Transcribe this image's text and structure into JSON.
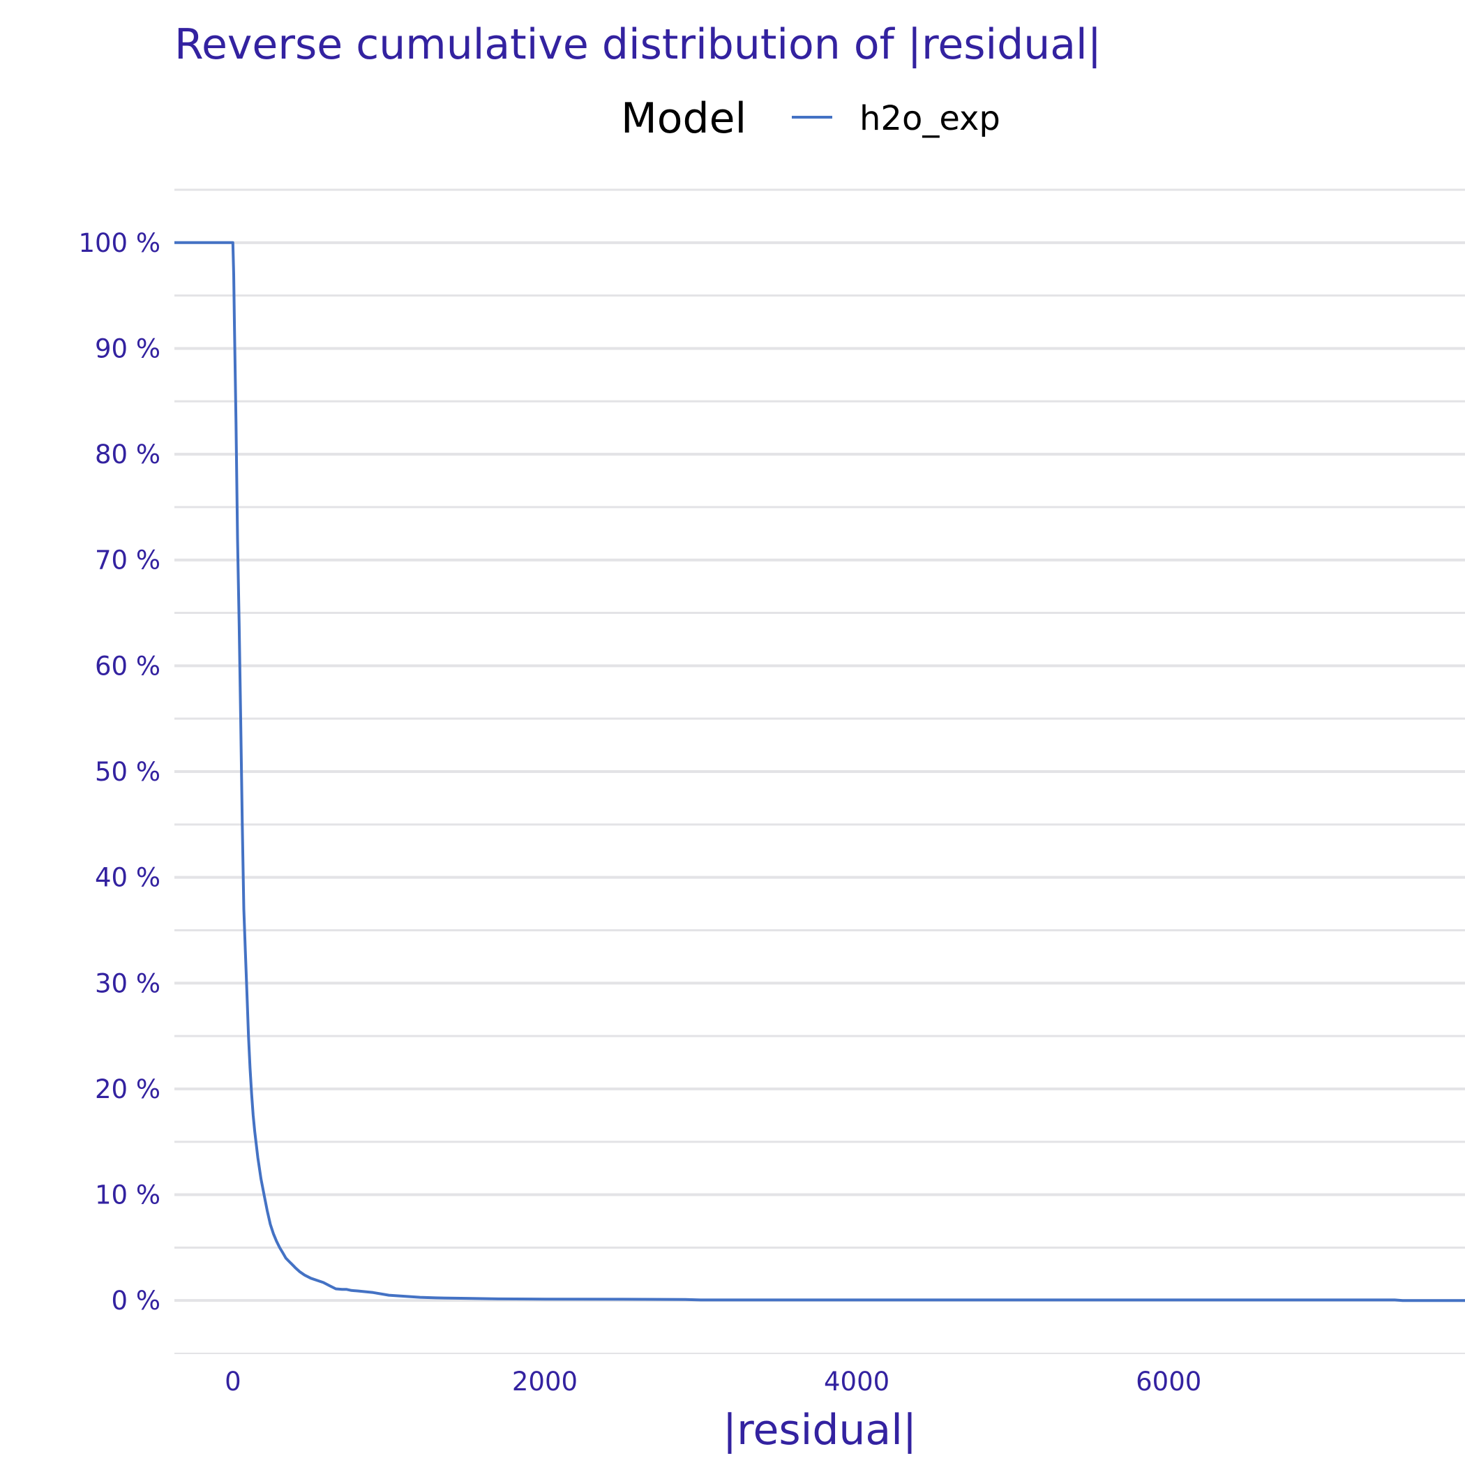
{
  "chart_data": {
    "type": "line",
    "title": "Reverse cumulative distribution of |residual|",
    "xlabel": "|residual|",
    "ylabel": "",
    "xlim": [
      -375,
      7900
    ],
    "ylim": [
      -0.05,
      1.05
    ],
    "x_ticks": [
      0,
      2000,
      4000,
      6000
    ],
    "x_tick_labels": [
      "0",
      "2000",
      "4000",
      "6000"
    ],
    "y_ticks": [
      0,
      0.1,
      0.2,
      0.3,
      0.4,
      0.5,
      0.6,
      0.7,
      0.8,
      0.9,
      1.0
    ],
    "y_tick_labels": [
      "0 %",
      "10 %",
      "20 %",
      "30 %",
      "40 %",
      "50 %",
      "60 %",
      "70 %",
      "80 %",
      "90 %",
      "100 %"
    ],
    "y_format": "percent",
    "grid": true,
    "legend": {
      "title": "Model",
      "position": "top"
    },
    "series": [
      {
        "name": "h2o_exp",
        "color": "#4472c4",
        "x": [
          -375,
          0,
          5,
          10,
          20,
          30,
          40,
          50,
          60,
          70,
          80,
          90,
          100,
          110,
          120,
          130,
          140,
          160,
          180,
          200,
          220,
          240,
          260,
          280,
          300,
          320,
          340,
          360,
          380,
          400,
          430,
          460,
          500,
          540,
          580,
          620,
          660,
          700,
          730,
          760,
          800,
          900,
          1000,
          1100,
          1200,
          1300,
          1500,
          1700,
          2000,
          2500,
          2900,
          3000,
          4000,
          5000,
          6000,
          7000,
          7450,
          7500,
          7900
        ],
        "y": [
          1.0,
          1.0,
          0.97,
          0.92,
          0.83,
          0.72,
          0.64,
          0.55,
          0.45,
          0.37,
          0.33,
          0.29,
          0.25,
          0.22,
          0.195,
          0.175,
          0.16,
          0.135,
          0.115,
          0.1,
          0.085,
          0.072,
          0.063,
          0.056,
          0.05,
          0.045,
          0.04,
          0.037,
          0.034,
          0.031,
          0.027,
          0.024,
          0.021,
          0.019,
          0.017,
          0.014,
          0.011,
          0.0105,
          0.0105,
          0.0095,
          0.009,
          0.0075,
          0.005,
          0.004,
          0.003,
          0.0025,
          0.002,
          0.0015,
          0.0013,
          0.0012,
          0.001,
          0.0005,
          0.0005,
          0.0005,
          0.0005,
          0.0005,
          0.0005,
          0.0,
          0.0
        ]
      }
    ]
  }
}
